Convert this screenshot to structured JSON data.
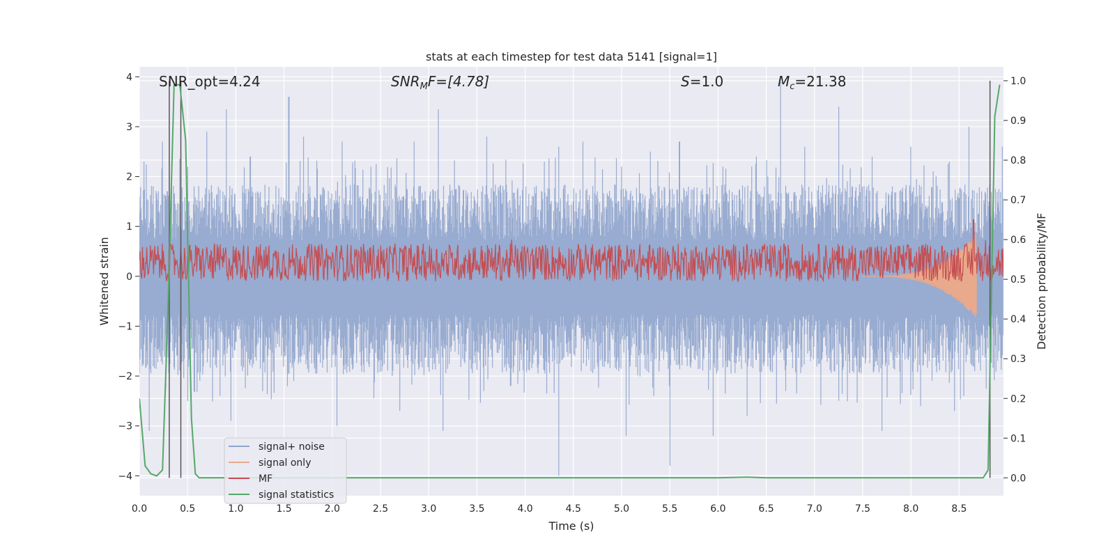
{
  "chart_data": {
    "type": "line",
    "title": "stats at each timestep for test data 5141 [signal=1]",
    "xlabel": "Time (s)",
    "ylabel": "Whitened strain",
    "y2label": "Detection probability/MF",
    "xlim": [
      0.0,
      8.96
    ],
    "ylim": [
      -4.4,
      4.2
    ],
    "y2lim": [
      -0.045,
      1.035
    ],
    "x_ticks": [
      0.0,
      0.5,
      1.0,
      1.5,
      2.0,
      2.5,
      3.0,
      3.5,
      4.0,
      4.5,
      5.0,
      5.5,
      6.0,
      6.5,
      7.0,
      7.5,
      8.0,
      8.5
    ],
    "x_tick_labels": [
      "0.0",
      "0.5",
      "1.0",
      "1.5",
      "2.0",
      "2.5",
      "3.0",
      "3.5",
      "4.0",
      "4.5",
      "5.0",
      "5.5",
      "6.0",
      "6.5",
      "7.0",
      "7.5",
      "8.0",
      "8.5"
    ],
    "y_ticks": [
      -4,
      -3,
      -2,
      -1,
      0,
      1,
      2,
      3,
      4
    ],
    "y_tick_labels": [
      "−4",
      "−3",
      "−2",
      "−1",
      "0",
      "1",
      "2",
      "3",
      "4"
    ],
    "y2_ticks": [
      0.0,
      0.1,
      0.2,
      0.3,
      0.4,
      0.5,
      0.6,
      0.7,
      0.8,
      0.9,
      1.0
    ],
    "y2_tick_labels": [
      "0.0",
      "0.1",
      "0.2",
      "0.3",
      "0.4",
      "0.5",
      "0.6",
      "0.7",
      "0.8",
      "0.9",
      "1.0"
    ],
    "grid": true,
    "legend": {
      "position": "lower-left",
      "entries": [
        {
          "label": "signal+ noise",
          "color": "#8fa4cc"
        },
        {
          "label": "signal only",
          "color": "#e9a98c"
        },
        {
          "label": "MF",
          "color": "#c44e52"
        },
        {
          "label": "signal statistics",
          "color": "#55a868"
        }
      ]
    },
    "annotations": {
      "snr_opt": "SNR_opt=4.24",
      "snr_mf_sym": "SNR",
      "snr_mf_sub": "M",
      "snr_mf_rest": "F=[4.78]",
      "s_sym": "S",
      "s_rest": "=1.0",
      "mc_sym": "M",
      "mc_sub": "c",
      "mc_rest": "=21.38"
    },
    "series": [
      {
        "name": "signal+ noise",
        "color": "#8fa4cc",
        "description_values": {
          "typical_upper_envelope": 1.6,
          "typical_lower_envelope": -1.7,
          "max_peak": 3.9,
          "min_peak": -4.0
        },
        "peaks": [
          [
            0.05,
            2.3
          ],
          [
            0.24,
            2.7
          ],
          [
            0.5,
            2.2
          ],
          [
            0.7,
            2.9
          ],
          [
            0.9,
            3.35
          ],
          [
            1.15,
            2.4
          ],
          [
            1.55,
            3.6
          ],
          [
            1.7,
            2.8
          ],
          [
            2.1,
            2.7
          ],
          [
            2.4,
            2.2
          ],
          [
            2.85,
            2.7
          ],
          [
            3.1,
            3.35
          ],
          [
            3.6,
            2.8
          ],
          [
            4.2,
            2.3
          ],
          [
            4.35,
            2.6
          ],
          [
            4.6,
            2.7
          ],
          [
            5.0,
            2.2
          ],
          [
            5.3,
            2.5
          ],
          [
            5.6,
            2.7
          ],
          [
            6.05,
            2.2
          ],
          [
            6.4,
            2.4
          ],
          [
            6.65,
            3.9
          ],
          [
            6.9,
            2.6
          ],
          [
            7.25,
            3.4
          ],
          [
            7.6,
            2.4
          ],
          [
            8.0,
            2.6
          ],
          [
            8.4,
            2.3
          ],
          [
            8.6,
            3.0
          ],
          [
            8.95,
            2.6
          ]
        ],
        "troughs": [
          [
            0.1,
            -3.1
          ],
          [
            0.5,
            -2.5
          ],
          [
            0.95,
            -2.9
          ],
          [
            1.6,
            -2.1
          ],
          [
            2.05,
            -3.0
          ],
          [
            2.7,
            -2.7
          ],
          [
            3.15,
            -3.1
          ],
          [
            3.85,
            -2.2
          ],
          [
            4.35,
            -4.0
          ],
          [
            5.05,
            -3.2
          ],
          [
            5.5,
            -3.8
          ],
          [
            5.95,
            -3.2
          ],
          [
            6.3,
            -2.8
          ],
          [
            6.7,
            -2.3
          ],
          [
            7.25,
            -2.5
          ],
          [
            7.7,
            -3.1
          ],
          [
            8.1,
            -2.6
          ],
          [
            8.45,
            -2.7
          ]
        ]
      },
      {
        "name": "signal only",
        "color": "#e9a98c",
        "chirp": {
          "start": 7.5,
          "end": 8.68,
          "max_amplitude": 0.85
        }
      },
      {
        "name": "MF",
        "color": "#c44e52",
        "band_y2": [
          0.495,
          0.59
        ],
        "peak": [
          8.65,
          0.65
        ]
      },
      {
        "name": "signal statistics",
        "color": "#55a868",
        "x": [
          0.0,
          0.06,
          0.12,
          0.18,
          0.24,
          0.3,
          0.36,
          0.42,
          0.48,
          0.54,
          0.58,
          0.62,
          1.0,
          2.0,
          3.0,
          4.0,
          5.0,
          6.0,
          6.3,
          6.5,
          7.0,
          8.0,
          8.6,
          8.75,
          8.8,
          8.87,
          8.92
        ],
        "y": [
          0.2,
          0.03,
          0.01,
          0.005,
          0.02,
          0.45,
          0.99,
          0.99,
          0.85,
          0.15,
          0.01,
          0.0,
          0.0,
          0.0,
          0.0,
          0.0,
          0.0,
          0.0,
          0.002,
          0.0,
          0.0,
          0.0,
          0.0,
          0.0,
          0.02,
          0.91,
          0.99
        ]
      }
    ],
    "vertical_lines_x": [
      0.31,
      0.43,
      8.82
    ]
  }
}
